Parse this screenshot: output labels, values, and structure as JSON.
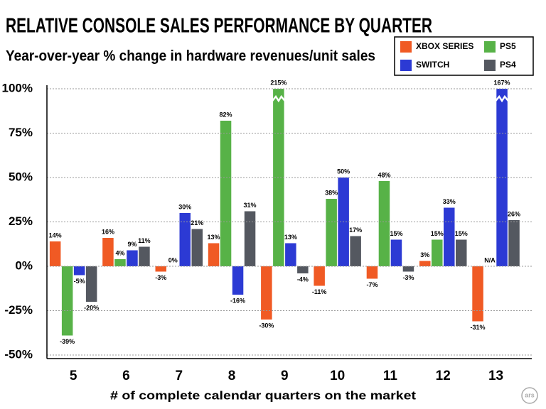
{
  "chart_data": {
    "type": "bar",
    "title": "RELATIVE CONSOLE SALES PERFORMANCE BY QUARTER",
    "subtitle": "Year-over-year % change in hardware revenues/unit sales",
    "x_label": "# of complete calendar quarters on the market",
    "categories": [
      "5",
      "6",
      "7",
      "8",
      "9",
      "10",
      "11",
      "12",
      "13"
    ],
    "series": [
      {
        "name": "XBOX SERIES",
        "color": "#f05a24",
        "values": [
          14,
          16,
          -3,
          13,
          -30,
          -11,
          -7,
          3,
          -31
        ],
        "value_labels": [
          "14%",
          "16%",
          "-3%",
          "13%",
          "-30%",
          "-11%",
          "-7%",
          "3%",
          "-31%"
        ]
      },
      {
        "name": "PS5",
        "color": "#57b247",
        "values": [
          -39,
          4,
          0,
          82,
          215,
          38,
          48,
          15,
          null
        ],
        "value_labels": [
          "-39%",
          "4%",
          "0%",
          "82%",
          "215%",
          "38%",
          "48%",
          "15%",
          "N/A"
        ]
      },
      {
        "name": "SWITCH",
        "color": "#2c3ad4",
        "values": [
          -5,
          9,
          30,
          -16,
          13,
          50,
          15,
          33,
          167
        ],
        "value_labels": [
          "-5%",
          "9%",
          "30%",
          "-16%",
          "13%",
          "50%",
          "15%",
          "33%",
          "167%"
        ]
      },
      {
        "name": "PS4",
        "color": "#545860",
        "values": [
          -20,
          11,
          21,
          31,
          -4,
          17,
          -3,
          15,
          26
        ],
        "value_labels": [
          "-20%",
          "11%",
          "21%",
          "31%",
          "-4%",
          "17%",
          "-3%",
          "15%",
          "26%"
        ]
      }
    ],
    "ylim": [
      -50,
      100
    ],
    "yticks": [
      {
        "value": -50,
        "label": "-50%"
      },
      {
        "value": -25,
        "label": "-25%"
      },
      {
        "value": 0,
        "label": "0%"
      },
      {
        "value": 25,
        "label": "25%"
      },
      {
        "value": 50,
        "label": "50%"
      },
      {
        "value": 75,
        "label": "75%"
      },
      {
        "value": 100,
        "label": "100%"
      }
    ],
    "grid": true,
    "legend": "top-right"
  },
  "logo": "ars"
}
